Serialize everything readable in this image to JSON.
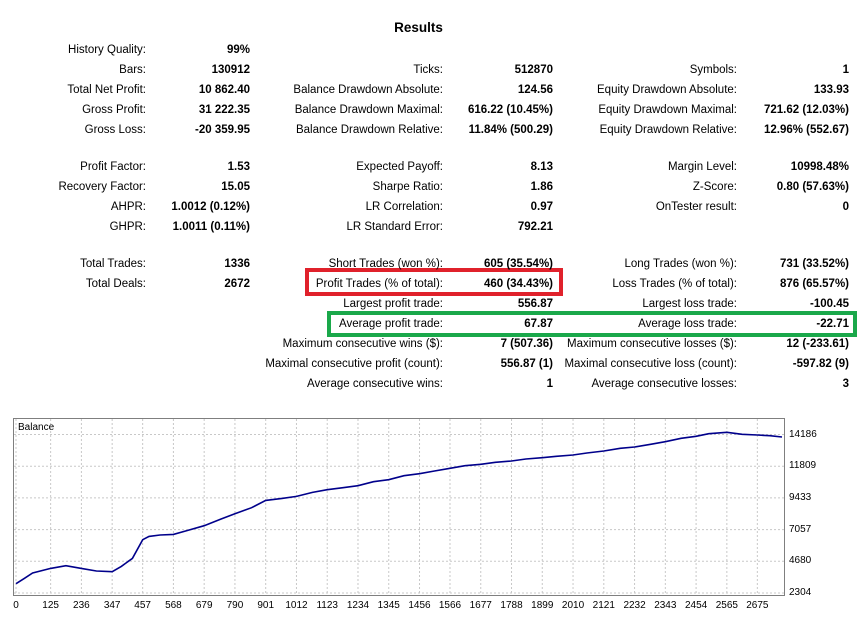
{
  "title": "Results",
  "rows": [
    {
      "c1": {
        "label": "History Quality:",
        "value": "99%"
      }
    },
    {
      "c1": {
        "label": "Bars:",
        "value": "130912"
      },
      "c2": {
        "label": "Ticks:",
        "value": "512870"
      },
      "c3": {
        "label": "Symbols:",
        "value": "1"
      }
    },
    {
      "c1": {
        "label": "Total Net Profit:",
        "value": "10 862.40"
      },
      "c2": {
        "label": "Balance Drawdown Absolute:",
        "value": "124.56"
      },
      "c3": {
        "label": "Equity Drawdown Absolute:",
        "value": "133.93"
      }
    },
    {
      "c1": {
        "label": "Gross Profit:",
        "value": "31 222.35"
      },
      "c2": {
        "label": "Balance Drawdown Maximal:",
        "value": "616.22 (10.45%)"
      },
      "c3": {
        "label": "Equity Drawdown Maximal:",
        "value": "721.62 (12.03%)"
      }
    },
    {
      "c1": {
        "label": "Gross Loss:",
        "value": "-20 359.95"
      },
      "c2": {
        "label": "Balance Drawdown Relative:",
        "value": "11.84% (500.29)"
      },
      "c3": {
        "label": "Equity Drawdown Relative:",
        "value": "12.96% (552.67)"
      }
    },
    {
      "c1": {
        "label": "Profit Factor:",
        "value": "1.53"
      },
      "c2": {
        "label": "Expected Payoff:",
        "value": "8.13"
      },
      "c3": {
        "label": "Margin Level:",
        "value": "10998.48%"
      }
    },
    {
      "c1": {
        "label": "Recovery Factor:",
        "value": "15.05"
      },
      "c2": {
        "label": "Sharpe Ratio:",
        "value": "1.86"
      },
      "c3": {
        "label": "Z-Score:",
        "value": "0.80 (57.63%)"
      }
    },
    {
      "c1": {
        "label": "AHPR:",
        "value": "1.0012 (0.12%)"
      },
      "c2": {
        "label": "LR Correlation:",
        "value": "0.97"
      },
      "c3": {
        "label": "OnTester result:",
        "value": "0"
      }
    },
    {
      "c1": {
        "label": "GHPR:",
        "value": "1.0011 (0.11%)"
      },
      "c2": {
        "label": "LR Standard Error:",
        "value": "792.21"
      }
    },
    {
      "c1": {
        "label": "Total Trades:",
        "value": "1336"
      },
      "c2": {
        "label": "Short Trades (won %):",
        "value": "605 (35.54%)"
      },
      "c3": {
        "label": "Long Trades (won %):",
        "value": "731 (33.52%)"
      }
    },
    {
      "c1": {
        "label": "Total Deals:",
        "value": "2672"
      },
      "c2": {
        "label": "Profit Trades (% of total):",
        "value": "460 (34.43%)"
      },
      "c3": {
        "label": "Loss Trades (% of total):",
        "value": "876 (65.57%)"
      }
    },
    {
      "c2": {
        "label": "Largest profit trade:",
        "value": "556.87"
      },
      "c3": {
        "label": "Largest loss trade:",
        "value": "-100.45"
      }
    },
    {
      "c2": {
        "label": "Average profit trade:",
        "value": "67.87"
      },
      "c3": {
        "label": "Average loss trade:",
        "value": "-22.71"
      }
    },
    {
      "c2": {
        "label": "Maximum consecutive wins ($):",
        "value": "7 (507.36)"
      },
      "c3": {
        "label": "Maximum consecutive losses ($):",
        "value": "12 (-233.61)"
      }
    },
    {
      "c2": {
        "label": "Maximal consecutive profit (count):",
        "value": "556.87 (1)"
      },
      "c3": {
        "label": "Maximal consecutive loss (count):",
        "value": "-597.82 (9)"
      }
    },
    {
      "c2": {
        "label": "Average consecutive wins:",
        "value": "1"
      },
      "c3": {
        "label": "Average consecutive losses:",
        "value": "3"
      }
    }
  ],
  "highlights": {
    "red": "#e0212b",
    "green": "#1aa84a"
  },
  "chart_data": {
    "type": "line",
    "title": "Balance",
    "line_color": "#00008b",
    "grid": true,
    "xlim": [
      0,
      2764
    ],
    "ylim": [
      2304,
      15200
    ],
    "x_ticks": [
      "0",
      "125",
      "236",
      "347",
      "457",
      "568",
      "679",
      "790",
      "901",
      "1012",
      "1123",
      "1234",
      "1345",
      "1456",
      "1566",
      "1677",
      "1788",
      "1899",
      "2010",
      "2121",
      "2232",
      "2343",
      "2454",
      "2565",
      "2675"
    ],
    "y_ticks": [
      "14186",
      "11809",
      "9433",
      "7057",
      "4680",
      "2304"
    ],
    "series": [
      {
        "x": [
          0,
          30,
          60,
          125,
          180,
          236,
          290,
          347,
          380,
          420,
          457,
          480,
          520,
          568,
          620,
          679,
          740,
          790,
          850,
          901,
          960,
          1012,
          1070,
          1123,
          1180,
          1234,
          1290,
          1345,
          1400,
          1456,
          1510,
          1566,
          1620,
          1677,
          1730,
          1788,
          1840,
          1899,
          1950,
          2010,
          2060,
          2121,
          2180,
          2232,
          2290,
          2343,
          2400,
          2454,
          2500,
          2565,
          2620,
          2675,
          2720,
          2764
        ],
        "y": [
          3000,
          3400,
          3800,
          4150,
          4350,
          4150,
          3950,
          3900,
          4300,
          4900,
          6300,
          6550,
          6650,
          6700,
          7000,
          7350,
          7850,
          8250,
          8700,
          9250,
          9400,
          9550,
          9850,
          10050,
          10200,
          10350,
          10650,
          10800,
          11100,
          11250,
          11450,
          11650,
          11850,
          11950,
          12100,
          12200,
          12350,
          12450,
          12550,
          12650,
          12800,
          12950,
          13150,
          13250,
          13450,
          13650,
          13900,
          14050,
          14250,
          14350,
          14200,
          14150,
          14100,
          14000
        ]
      }
    ]
  }
}
